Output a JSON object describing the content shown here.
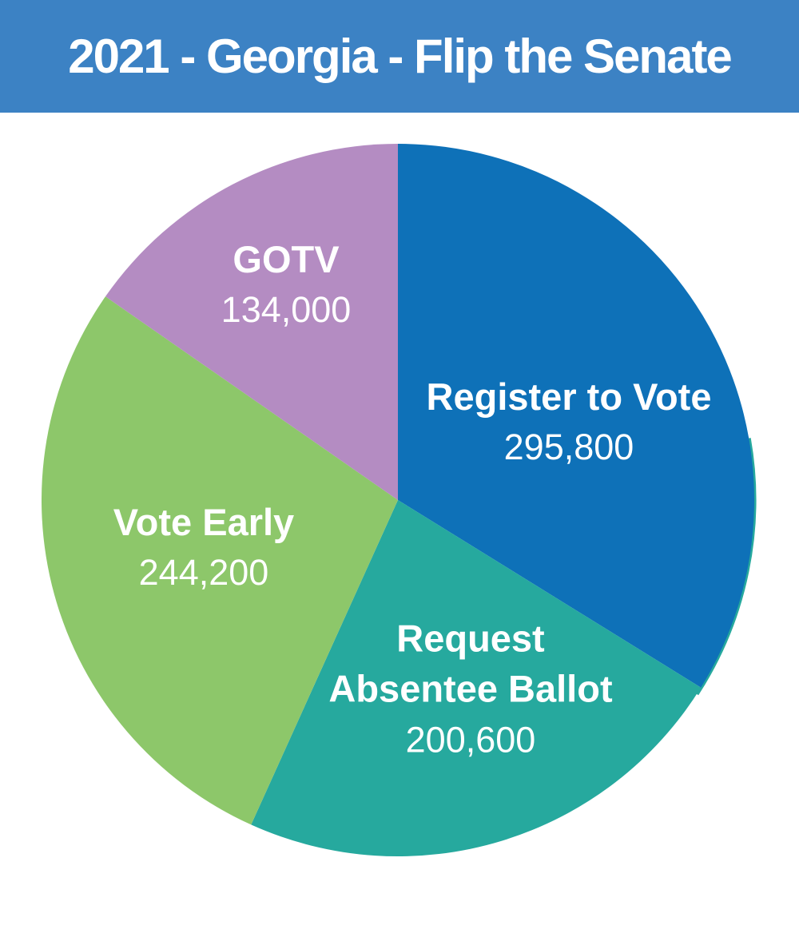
{
  "banner": {
    "title": "2021 - Georgia - Flip the Senate",
    "bg_color": "#3c82c4",
    "text_color": "#ffffff"
  },
  "chart_data": {
    "type": "pie",
    "title": "2021 - Georgia - Flip the Senate",
    "start_angle_deg": 0,
    "direction": "clockwise",
    "total": 874600,
    "legend_position": "labels-inside-slices",
    "label_text_color": "#ffffff",
    "slices": [
      {
        "label": "Register to Vote",
        "label_lines": [
          "Register to Vote"
        ],
        "value": 295800,
        "value_display": "295,800",
        "color": "#0e71b8"
      },
      {
        "label": "Request Absentee Ballot",
        "label_lines": [
          "Request",
          "Absentee Ballot"
        ],
        "value": 200600,
        "value_display": "200,600",
        "color": "#26a99e"
      },
      {
        "label": "Vote Early",
        "label_lines": [
          "Vote Early"
        ],
        "value": 244200,
        "value_display": "244,200",
        "color": "#8dc76a"
      },
      {
        "label": "GOTV",
        "label_lines": [
          "GOTV"
        ],
        "value": 134000,
        "value_display": "134,000",
        "color": "#b48cc2"
      }
    ]
  }
}
